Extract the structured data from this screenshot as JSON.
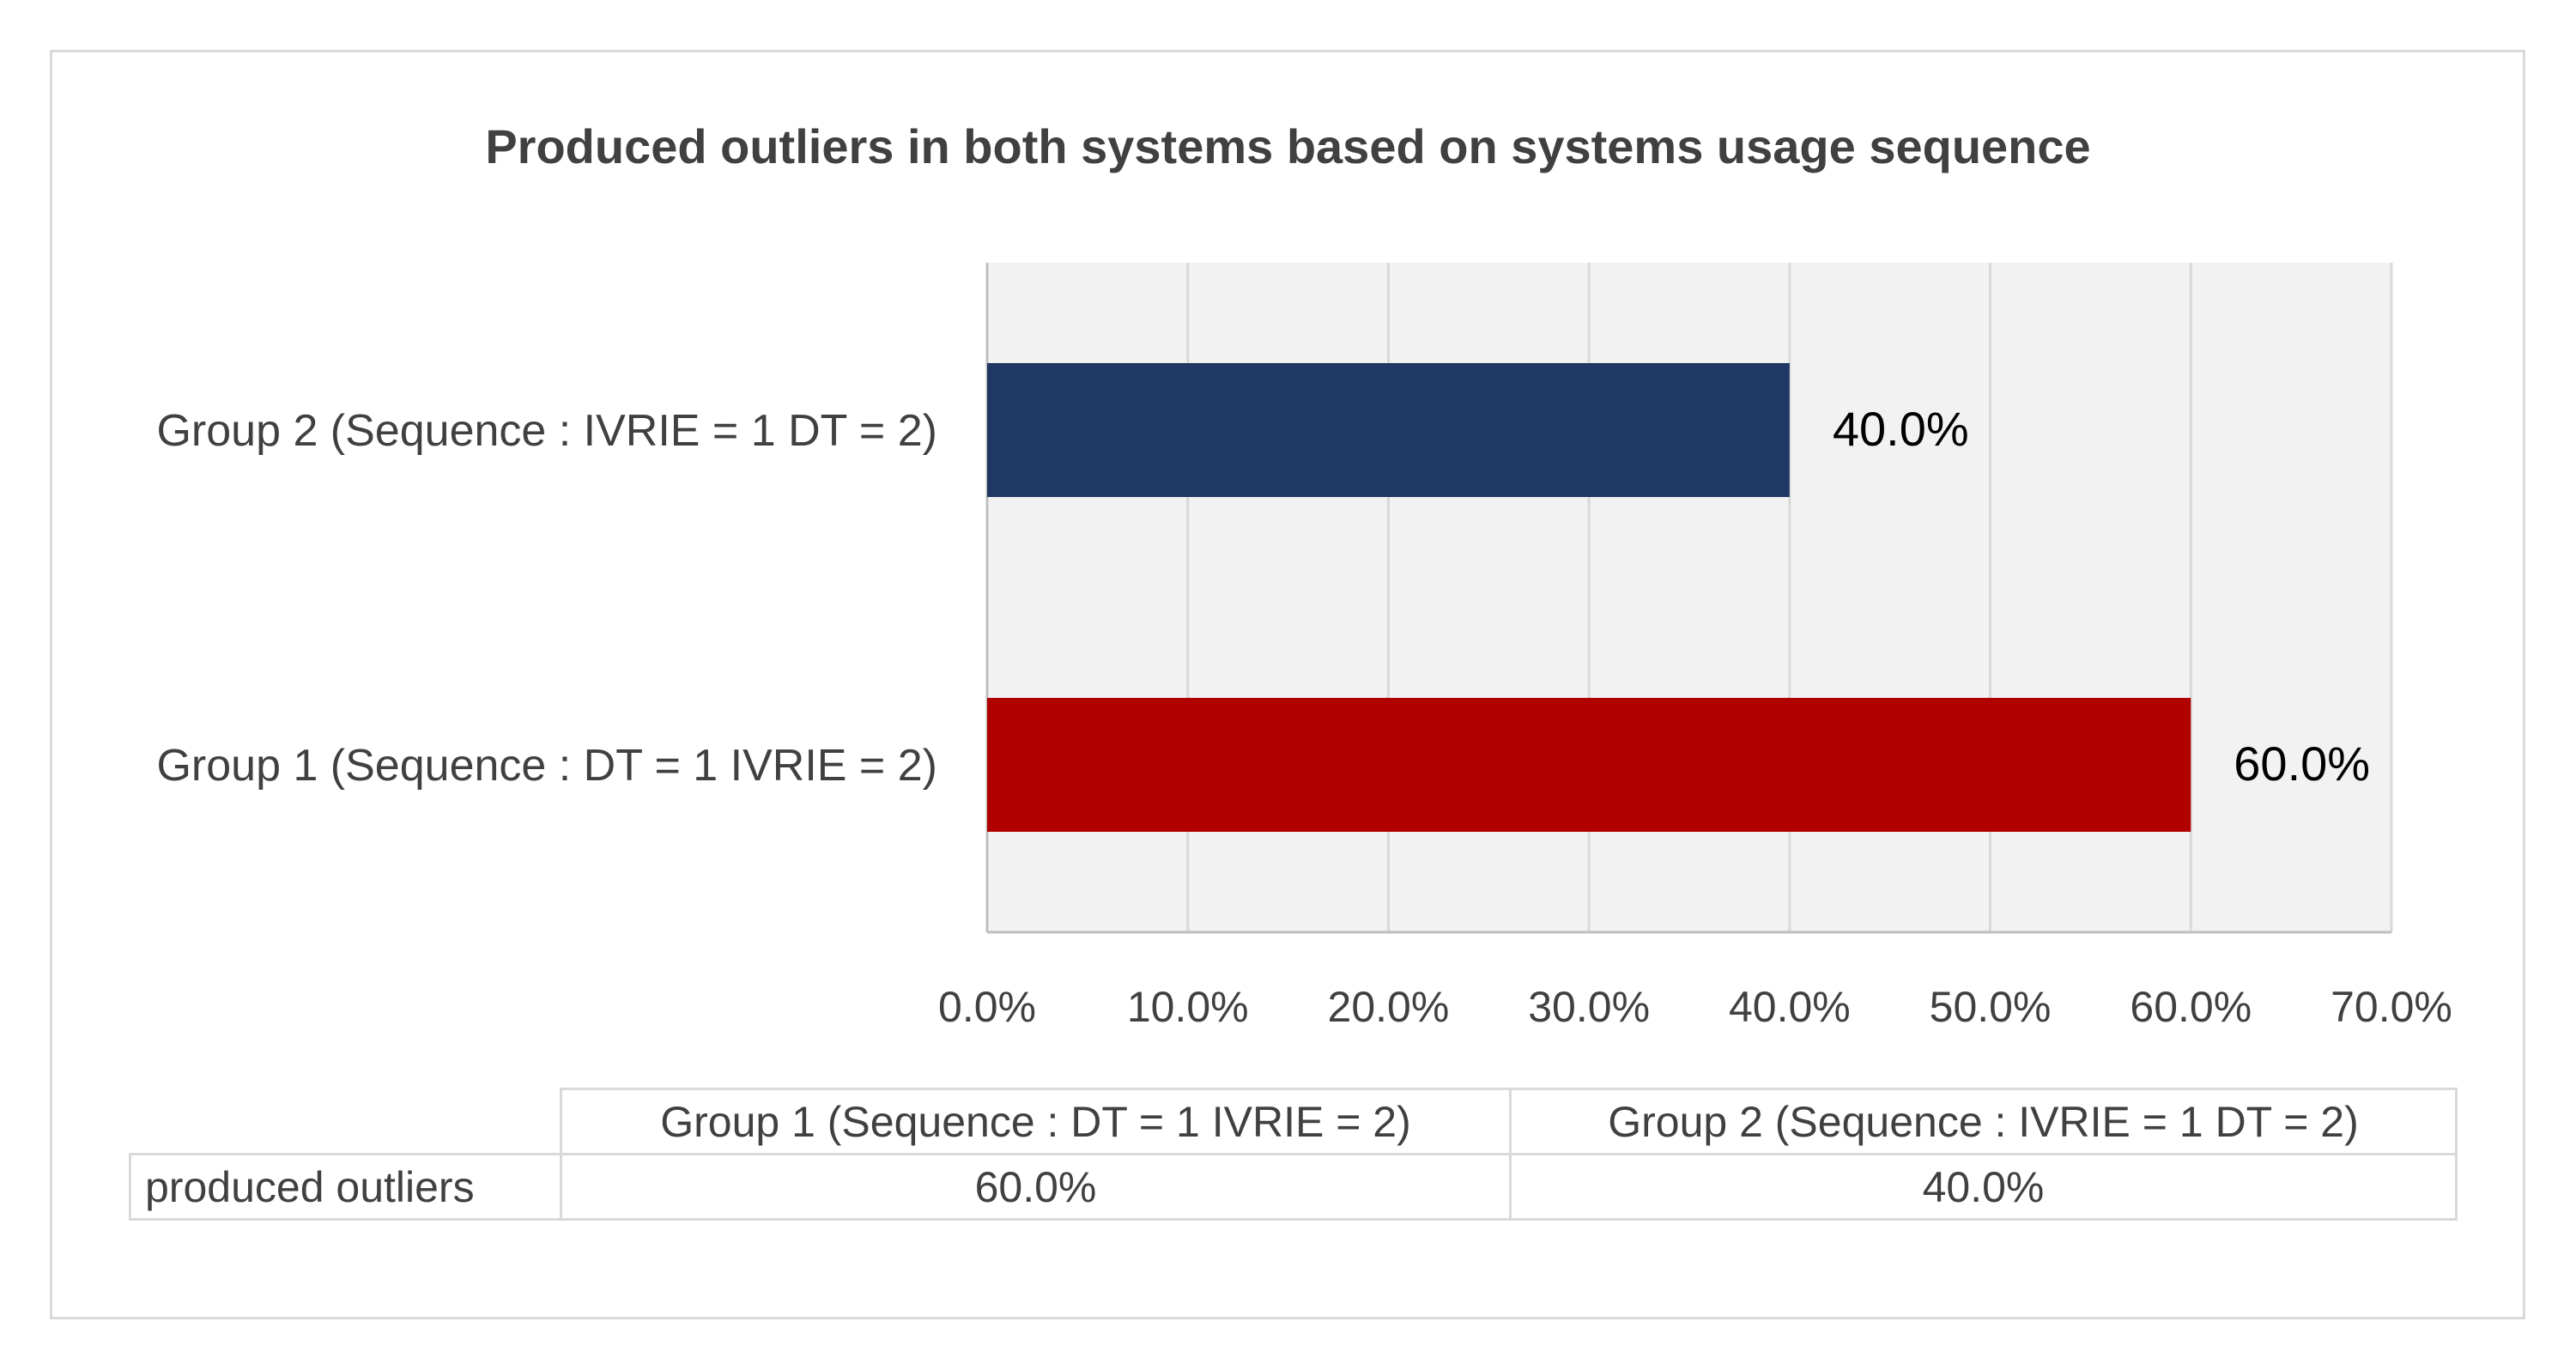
{
  "chart_data": {
    "type": "bar",
    "orientation": "horizontal",
    "title": "Produced outliers in both systems based on systems usage sequence",
    "categories": [
      "Group 1 (Sequence : DT = 1  IVRIE = 2)",
      "Group 2 (Sequence : IVRIE = 1 DT = 2)"
    ],
    "series": [
      {
        "name": "produced outliers",
        "values": [
          60.0,
          40.0
        ],
        "value_labels": [
          "60.0%",
          "40.0%"
        ],
        "colors": [
          "#b00000",
          "#203864"
        ]
      }
    ],
    "xlim": [
      0,
      70
    ],
    "x_ticks": [
      0,
      10,
      20,
      30,
      40,
      50,
      60,
      70
    ],
    "x_tick_labels": [
      "0.0%",
      "10.0%",
      "20.0%",
      "30.0%",
      "40.0%",
      "50.0%",
      "60.0%",
      "70.0%"
    ],
    "xlabel": "",
    "ylabel": "",
    "grid": true,
    "plot_background": "#f2f2f2",
    "gridline_color": "#d9d9d9",
    "data_table": {
      "headers": [
        "Group 1 (Sequence : DT = 1  IVRIE = 2)",
        "Group 2 (Sequence : IVRIE = 1 DT = 2)"
      ],
      "row_label": "produced outliers",
      "cells": [
        "60.0%",
        "40.0%"
      ]
    }
  }
}
